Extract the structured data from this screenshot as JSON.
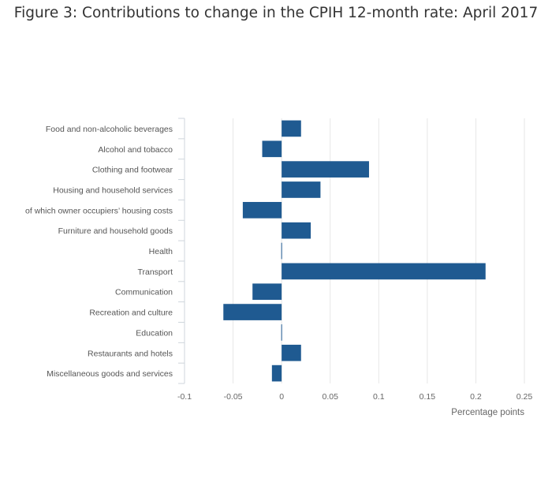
{
  "chart_data": {
    "type": "bar",
    "orientation": "horizontal",
    "title": "Figure 3: Contributions to change in the CPIH 12-month rate: April 2017",
    "xlabel": "Percentage points",
    "ylabel": "",
    "xlim": [
      -0.1,
      0.25
    ],
    "xticks": [
      "-0.1",
      "-0.05",
      "0",
      "0.05",
      "0.1",
      "0.15",
      "0.2",
      "0.25"
    ],
    "xtick_values": [
      -0.1,
      -0.05,
      0,
      0.05,
      0.1,
      0.15,
      0.2,
      0.25
    ],
    "grid": true,
    "bar_color": "#1f5a91",
    "categories": [
      "Food and non-alcoholic beverages",
      "Alcohol and tobacco",
      "Clothing and footwear",
      "Housing and household services",
      "of which owner occupiers’ housing costs",
      "Furniture and household goods",
      "Health",
      "Transport",
      "Communication",
      "Recreation and culture",
      "Education",
      "Restaurants and hotels",
      "Miscellaneous goods and services"
    ],
    "values": [
      0.02,
      -0.02,
      0.09,
      0.04,
      -0.04,
      0.03,
      0.0,
      0.21,
      -0.03,
      -0.06,
      0.0,
      0.02,
      -0.01
    ]
  }
}
